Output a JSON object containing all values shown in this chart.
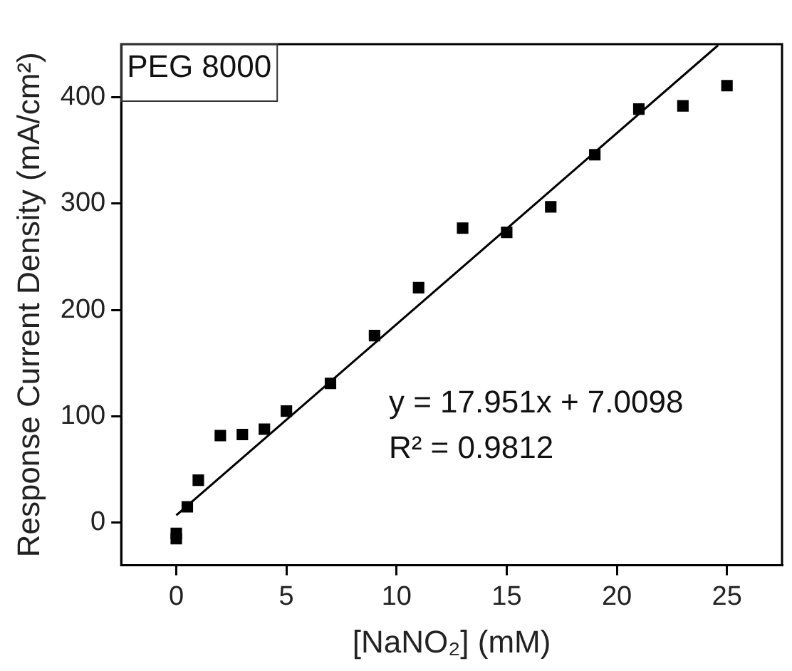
{
  "chart_data": {
    "type": "scatter",
    "xlabel": "[NaNO₂] (mM)",
    "ylabel": "Response Current Density (mA/cm²)",
    "xlim": [
      -2.5,
      27.5
    ],
    "xticks": [
      0,
      5,
      10,
      15,
      20,
      25
    ],
    "ylim": [
      -40,
      450
    ],
    "yticks": [
      0,
      100,
      200,
      300,
      400
    ],
    "grid": false,
    "legend": false,
    "marker": "square",
    "annotations": [
      "PEG 8000",
      "y = 17.951x + 7.0098",
      "R² = 0.9812"
    ],
    "series": [
      {
        "color": "#000000",
        "x": [
          0,
          0,
          0.5,
          1,
          2,
          3,
          4,
          5,
          7,
          9,
          11,
          13,
          15,
          17,
          19,
          21,
          23,
          25
        ],
        "values": [
          -10,
          -15,
          15,
          40,
          82,
          83,
          88,
          105,
          131,
          176,
          221,
          277,
          273,
          297,
          346,
          389,
          392,
          411
        ]
      },
      {
        "type": "line",
        "color": "#000000",
        "marker": "none",
        "x": [
          0,
          24.6
        ],
        "values": [
          7,
          449
        ]
      }
    ]
  }
}
